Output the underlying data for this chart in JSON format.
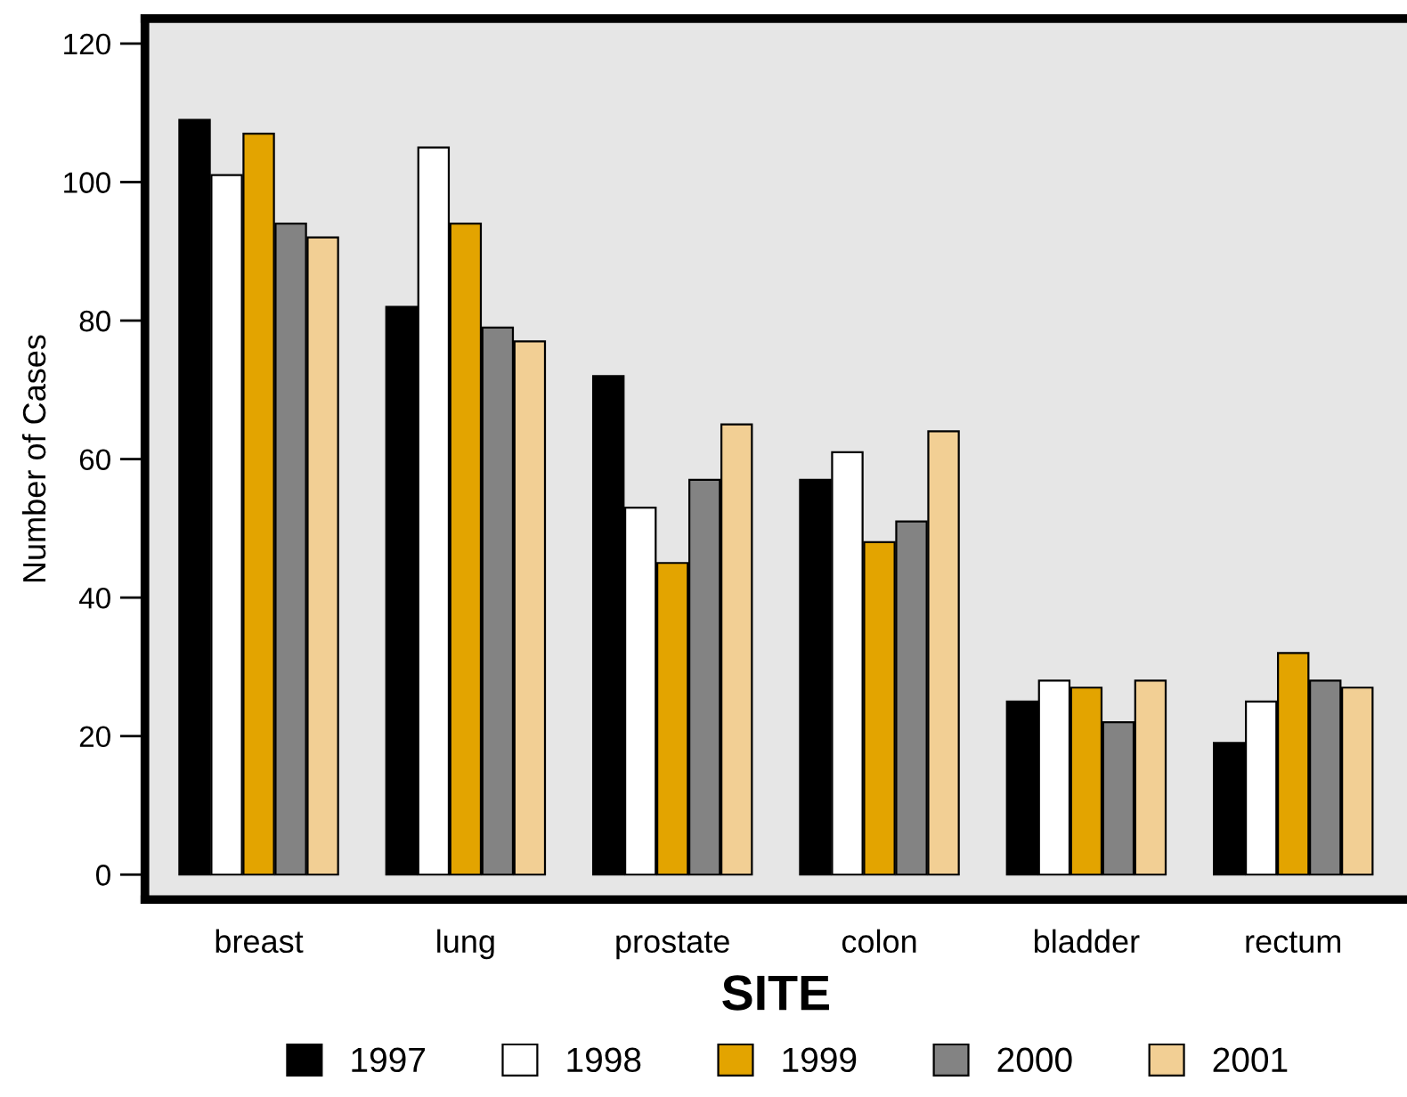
{
  "chart_data": {
    "type": "bar",
    "xlabel": "SITE",
    "ylabel": "Number of Cases",
    "categories": [
      "breast",
      "lung",
      "prostate",
      "colon",
      "bladder",
      "rectum"
    ],
    "series": [
      {
        "name": "1997",
        "color": "#000000",
        "values": [
          109,
          82,
          72,
          57,
          25,
          19
        ]
      },
      {
        "name": "1998",
        "color": "#ffffff",
        "values": [
          101,
          105,
          53,
          61,
          28,
          25
        ]
      },
      {
        "name": "1999",
        "color": "#e3a400",
        "values": [
          107,
          94,
          45,
          48,
          27,
          32
        ]
      },
      {
        "name": "2000",
        "color": "#838383",
        "values": [
          94,
          79,
          57,
          51,
          22,
          28
        ]
      },
      {
        "name": "2001",
        "color": "#f2cf94",
        "values": [
          92,
          77,
          65,
          64,
          28,
          27
        ]
      }
    ],
    "ylim": [
      -3.6,
      123.6
    ],
    "yticks": [
      0,
      20,
      40,
      60,
      80,
      100,
      120
    ],
    "grid": false,
    "legend": "bottom"
  }
}
